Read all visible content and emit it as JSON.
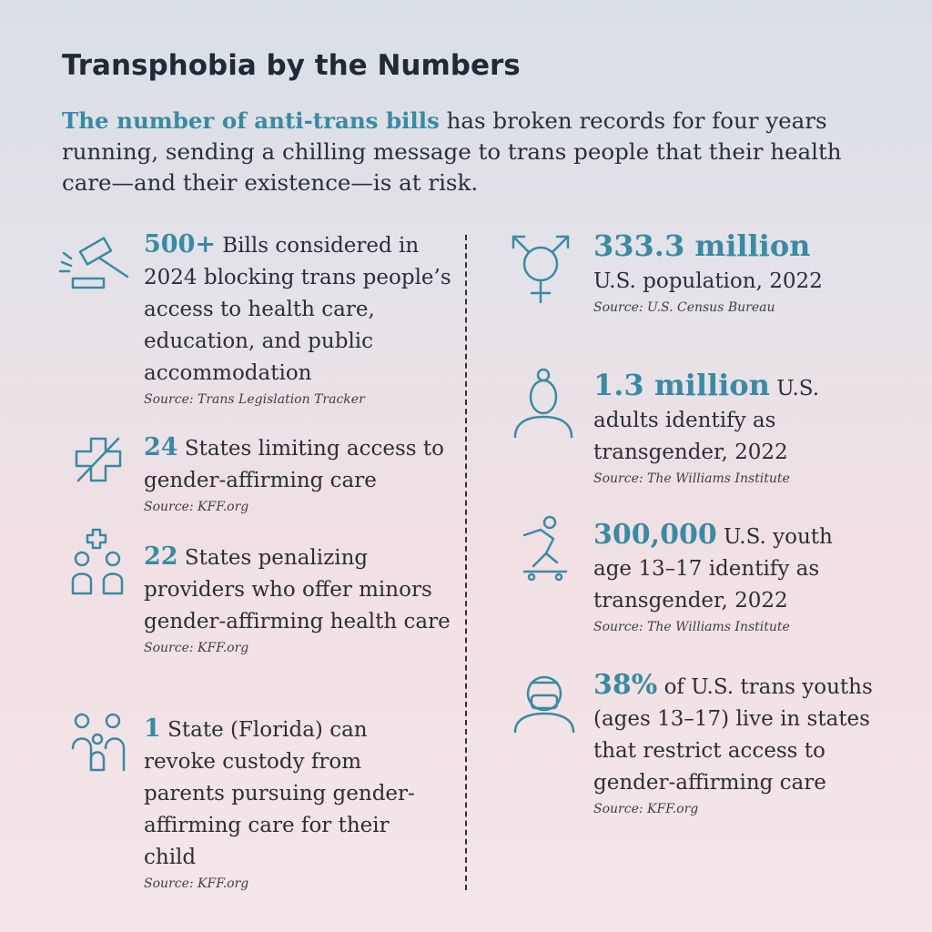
{
  "header": {
    "title": "Transphobia by the Numbers",
    "intro_highlight": "The number of anti-trans bills",
    "intro_rest": "has broken records for four years running, sending a chilling message to trans people that their health care—and their existence—is at risk."
  },
  "left": [
    {
      "stat": "500+",
      "text": "Bills considered in 2024 blocking trans people’s access to health care, education, and public accommodation",
      "source": "Source: Trans Legislation Tracker"
    },
    {
      "stat": "24",
      "text": "States limiting access to gender-affirming care",
      "source": "Source: KFF.org"
    },
    {
      "stat": "22",
      "text": "States penalizing providers who offer minors gender-affirming health care",
      "source": "Source: KFF.org"
    },
    {
      "stat": "1",
      "text": "State (Florida) can revoke custody from parents pursuing gender-affirming care for their child",
      "source": "Source: KFF.org"
    }
  ],
  "right": [
    {
      "stat": "333.3 million",
      "text": "U.S. population, 2022",
      "source": "Source: U.S. Census Bureau"
    },
    {
      "stat": "1.3 million",
      "text": "U.S. adults identify as transgender, 2022",
      "source": "Source: The Williams Institute"
    },
    {
      "stat": "300,000",
      "text": "U.S. youth age 13–17 identify as transgender, 2022",
      "source": "Source: The Williams Institute"
    },
    {
      "stat": "38%",
      "text": "of U.S. trans youths (ages 13–17) live in states that restrict access to gender-affirming care",
      "source": "Source: KFF.org"
    }
  ]
}
